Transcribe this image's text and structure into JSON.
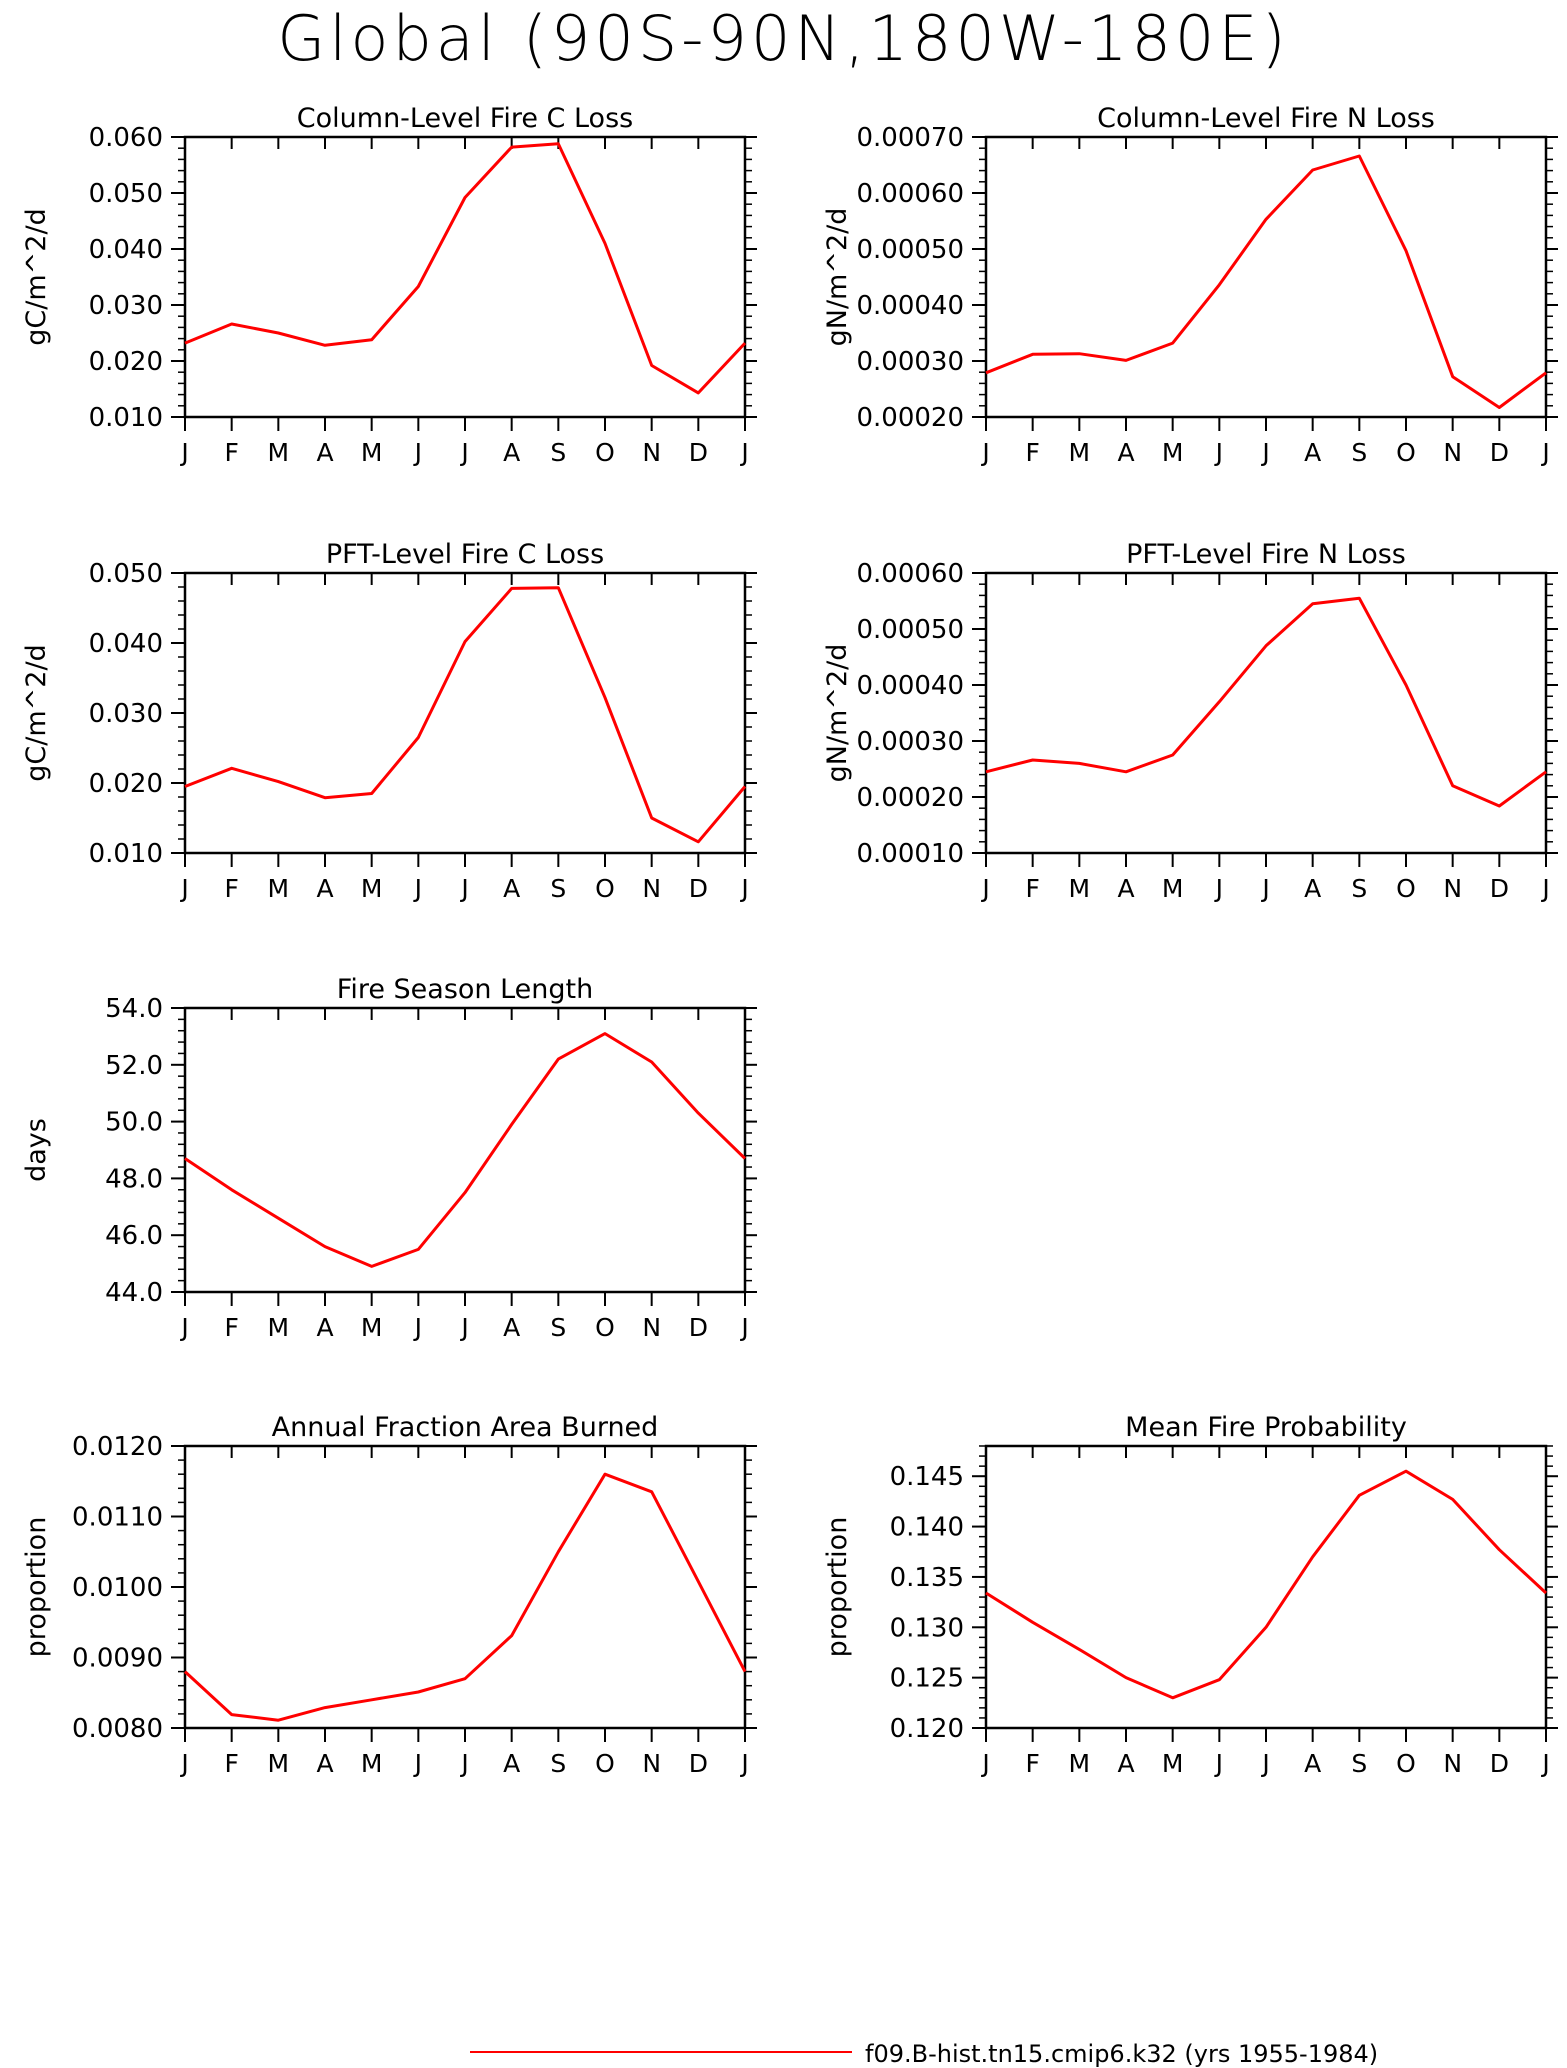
{
  "title": "Global (90S-90N,180W-180E)",
  "line_color": "#ff0000",
  "legend": {
    "label": "f09.B-hist.tn15.cmip6.k32 (yrs 1955-1984)"
  },
  "chart_data": [
    {
      "type": "line",
      "title": "Column-Level Fire C Loss",
      "ylabel": "gC/m^2/d",
      "categories": [
        "J",
        "F",
        "M",
        "A",
        "M",
        "J",
        "J",
        "A",
        "S",
        "O",
        "N",
        "D",
        "J"
      ],
      "ylim": [
        0.01,
        0.06
      ],
      "yticks": [
        "0.010",
        "0.020",
        "0.030",
        "0.040",
        "0.050",
        "0.060"
      ],
      "series": [
        {
          "values": [
            0.0232,
            0.0266,
            0.025,
            0.0228,
            0.0238,
            0.0333,
            0.0492,
            0.0582,
            0.0588,
            0.041,
            0.0192,
            0.0143,
            0.0232
          ]
        }
      ]
    },
    {
      "type": "line",
      "title": "Column-Level Fire N Loss",
      "ylabel": "gN/m^2/d",
      "categories": [
        "J",
        "F",
        "M",
        "A",
        "M",
        "J",
        "J",
        "A",
        "S",
        "O",
        "N",
        "D",
        "J"
      ],
      "ylim": [
        0.0002,
        0.0007
      ],
      "yticks": [
        "0.00020",
        "0.00030",
        "0.00040",
        "0.00050",
        "0.00060",
        "0.00070"
      ],
      "series": [
        {
          "values": [
            0.000279,
            0.000312,
            0.000313,
            0.000301,
            0.000332,
            0.000436,
            0.000553,
            0.000641,
            0.000666,
            0.000497,
            0.000272,
            0.000217,
            0.000279
          ]
        }
      ]
    },
    {
      "type": "line",
      "title": "PFT-Level Fire C Loss",
      "ylabel": "gC/m^2/d",
      "categories": [
        "J",
        "F",
        "M",
        "A",
        "M",
        "J",
        "J",
        "A",
        "S",
        "O",
        "N",
        "D",
        "J"
      ],
      "ylim": [
        0.01,
        0.05
      ],
      "yticks": [
        "0.010",
        "0.020",
        "0.030",
        "0.040",
        "0.050"
      ],
      "series": [
        {
          "values": [
            0.0195,
            0.0221,
            0.0202,
            0.0179,
            0.0185,
            0.0265,
            0.0402,
            0.0478,
            0.0479,
            0.0322,
            0.015,
            0.0116,
            0.0195
          ]
        }
      ]
    },
    {
      "type": "line",
      "title": "PFT-Level Fire N Loss",
      "ylabel": "gN/m^2/d",
      "categories": [
        "J",
        "F",
        "M",
        "A",
        "M",
        "J",
        "J",
        "A",
        "S",
        "O",
        "N",
        "D",
        "J"
      ],
      "ylim": [
        0.0001,
        0.0006
      ],
      "yticks": [
        "0.00010",
        "0.00020",
        "0.00030",
        "0.00040",
        "0.00050",
        "0.00060"
      ],
      "series": [
        {
          "values": [
            0.000245,
            0.000266,
            0.00026,
            0.000245,
            0.000275,
            0.00037,
            0.00047,
            0.000545,
            0.000555,
            0.0004,
            0.00022,
            0.000184,
            0.000245
          ]
        }
      ]
    },
    {
      "type": "line",
      "title": "Fire Season Length",
      "ylabel": "days",
      "categories": [
        "J",
        "F",
        "M",
        "A",
        "M",
        "J",
        "J",
        "A",
        "S",
        "O",
        "N",
        "D",
        "J"
      ],
      "ylim": [
        44.0,
        54.0
      ],
      "yticks": [
        "44.0",
        "46.0",
        "48.0",
        "50.0",
        "52.0",
        "54.0"
      ],
      "series": [
        {
          "values": [
            48.7,
            47.6,
            46.6,
            45.6,
            44.9,
            45.5,
            47.5,
            49.9,
            52.2,
            53.1,
            52.1,
            50.3,
            48.7
          ]
        }
      ]
    },
    {
      "type": "line",
      "title": "Annual Fraction Area Burned",
      "ylabel": "proportion",
      "categories": [
        "J",
        "F",
        "M",
        "A",
        "M",
        "J",
        "J",
        "A",
        "S",
        "O",
        "N",
        "D",
        "J"
      ],
      "ylim": [
        0.008,
        0.012
      ],
      "yticks": [
        "0.0080",
        "0.0090",
        "0.0100",
        "0.0110",
        "0.0120"
      ],
      "series": [
        {
          "values": [
            0.0088,
            0.00819,
            0.00811,
            0.00829,
            0.0084,
            0.00851,
            0.0087,
            0.00931,
            0.0105,
            0.0116,
            0.01135,
            0.01008,
            0.0088
          ]
        }
      ]
    },
    {
      "type": "line",
      "title": "Mean Fire Probability",
      "ylabel": "proportion",
      "categories": [
        "J",
        "F",
        "M",
        "A",
        "M",
        "J",
        "J",
        "A",
        "S",
        "O",
        "N",
        "D",
        "J"
      ],
      "ylim": [
        0.12,
        0.148
      ],
      "yticks": [
        "0.120",
        "0.125",
        "0.130",
        "0.135",
        "0.140",
        "0.145"
      ],
      "series": [
        {
          "values": [
            0.1334,
            0.1305,
            0.1278,
            0.125,
            0.123,
            0.1248,
            0.13,
            0.137,
            0.1431,
            0.1455,
            0.1427,
            0.1377,
            0.1334
          ]
        }
      ]
    }
  ]
}
